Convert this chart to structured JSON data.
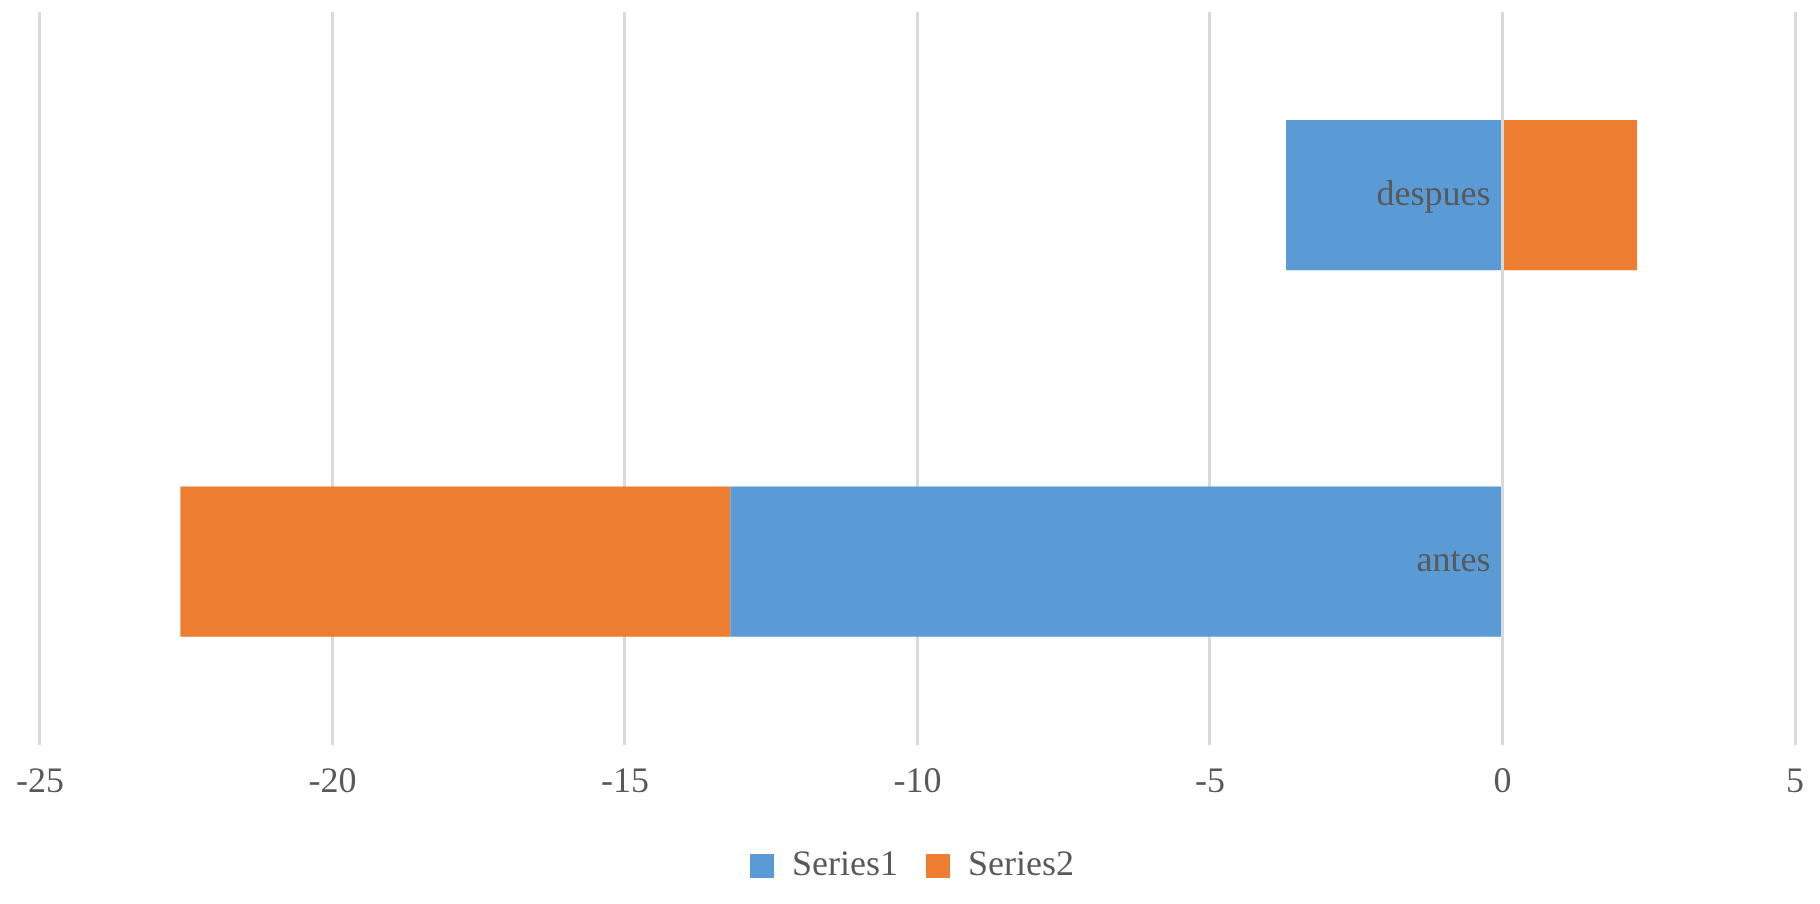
{
  "chart_data": {
    "type": "bar",
    "orientation": "horizontal",
    "stacked": true,
    "categories": [
      "despues",
      "antes"
    ],
    "series": [
      {
        "name": "Series1",
        "color": "#5b9bd5",
        "values": [
          -3.7,
          -13.2
        ]
      },
      {
        "name": "Series2",
        "color": "#ed7d31",
        "values": [
          2.3,
          -9.4
        ]
      }
    ],
    "xlim": [
      -25,
      5
    ],
    "xticks": [
      -25,
      -20,
      -15,
      -10,
      -5,
      0,
      5
    ],
    "grid": "x",
    "legend": "bottom"
  }
}
